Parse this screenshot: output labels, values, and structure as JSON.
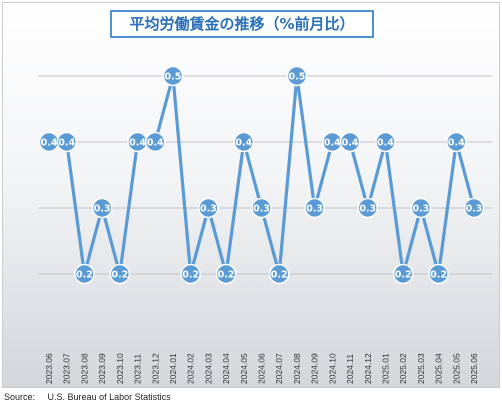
{
  "source_label": "Source:",
  "source_text": "U.S. Bureau of Labor Statistics",
  "colors": {
    "line": "#5b9bd5",
    "marker_fill": "#5b9bd5",
    "marker_stroke": "#ffffff",
    "label_text": "#ffffff",
    "grid": "#c0c3c8",
    "title_border": "#4f90d0",
    "title_text": "#2a6fb8"
  },
  "chart_data": {
    "type": "line",
    "title": "平均労働賃金の推移（%前月比）",
    "xlabel": "",
    "ylabel": "",
    "ylim": [
      0,
      0.6
    ],
    "grid": true,
    "legend": "none",
    "categories": [
      "2023.06",
      "2023.07",
      "2023.08",
      "2023.09",
      "2023.10",
      "2023.11",
      "2023.12",
      "2024.01",
      "2024.02",
      "2024.03",
      "2024.04",
      "2024.05",
      "2024.06",
      "2024.07",
      "2024.08",
      "2024.09",
      "2024.10",
      "2024.11",
      "2024.12",
      "2025.01",
      "2025.02",
      "2025.03",
      "2025.04",
      "2025.05",
      "2025.06"
    ],
    "values": [
      0.4,
      0.4,
      0.2,
      0.3,
      0.2,
      0.4,
      0.4,
      0.5,
      0.2,
      0.3,
      0.2,
      0.4,
      0.3,
      0.2,
      0.5,
      0.3,
      0.4,
      0.4,
      0.3,
      0.4,
      0.2,
      0.3,
      0.2,
      0.4,
      0.3
    ],
    "data_labels": [
      "0.4",
      "0.4",
      "0.2",
      "0.3",
      "0.2",
      "0.4",
      "0.4",
      "0.5",
      "0.2",
      "0.3",
      "0.2",
      "0.4",
      "0.3",
      "0.2",
      "0.5",
      "0.3",
      "0.4",
      "0.4",
      "0.3",
      "0.4",
      "0.2",
      "0.3",
      "0.2",
      "0.4",
      "0.3"
    ]
  }
}
